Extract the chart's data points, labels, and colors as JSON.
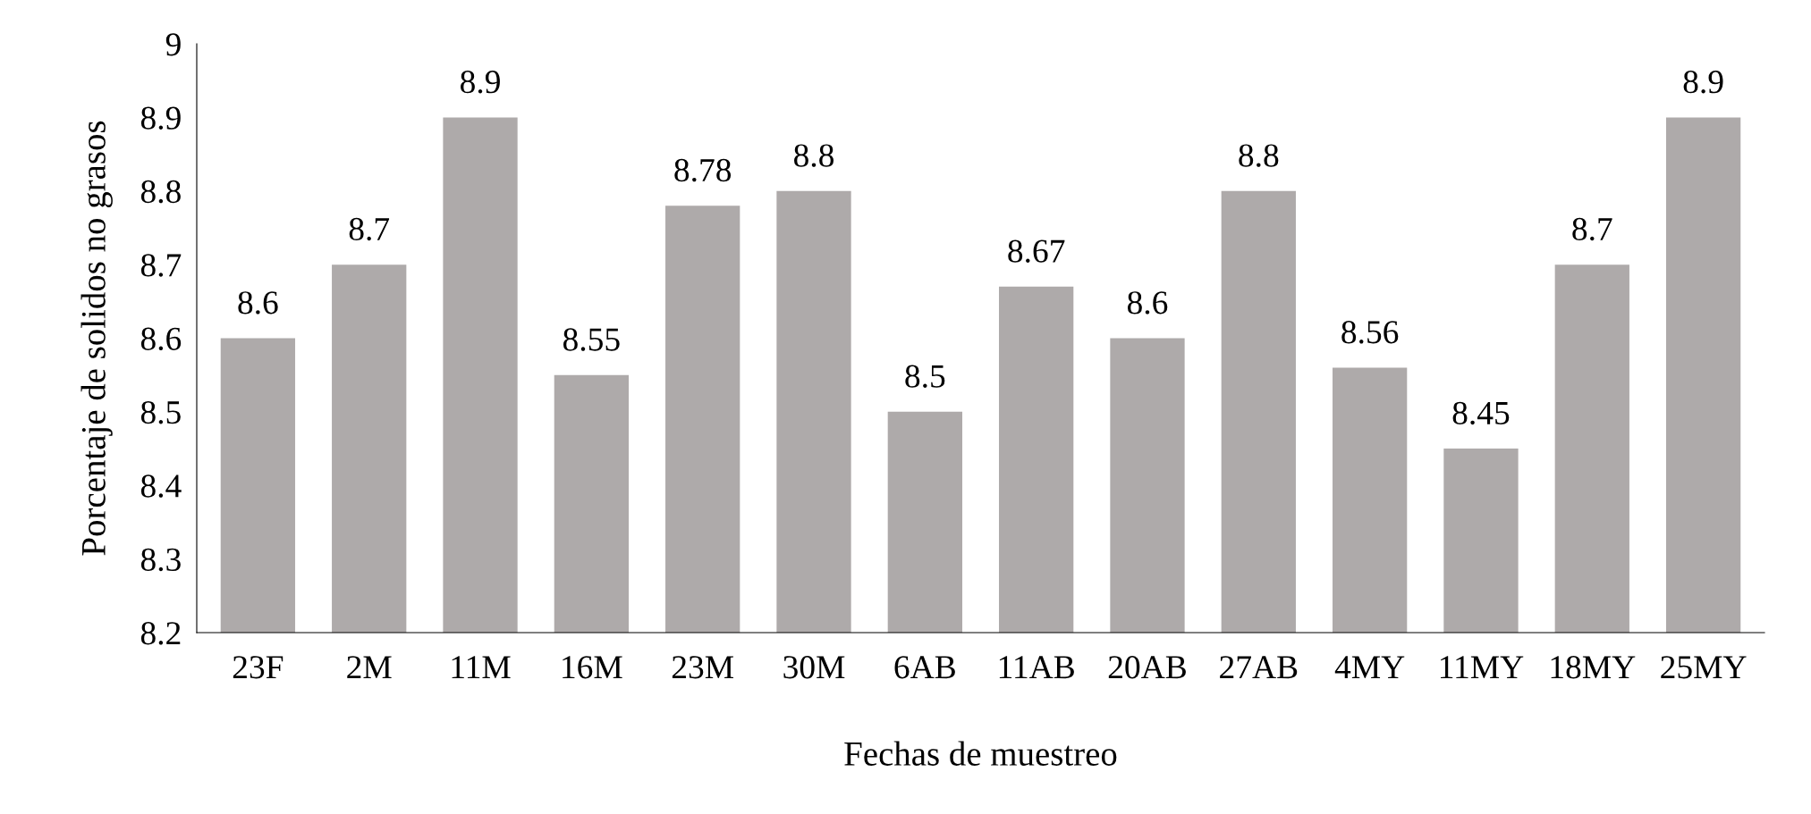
{
  "chart_data": {
    "type": "bar",
    "xlabel": "Fechas de muestreo",
    "ylabel": "Porcentaje de solidos no grasos",
    "categories": [
      "23F",
      "2M",
      "11M",
      "16M",
      "23M",
      "30M",
      "6AB",
      "11AB",
      "20AB",
      "27AB",
      "4MY",
      "11MY",
      "18MY",
      "25MY"
    ],
    "values": [
      8.6,
      8.7,
      8.9,
      8.55,
      8.78,
      8.8,
      8.5,
      8.67,
      8.6,
      8.8,
      8.56,
      8.45,
      8.7,
      8.9
    ],
    "color": "#aeaaaa",
    "ylim": [
      8.2,
      9
    ],
    "yticks": [
      8.2,
      8.3,
      8.4,
      8.5,
      8.6,
      8.7,
      8.8,
      8.9,
      9
    ],
    "grid": false,
    "data_labels": true
  }
}
